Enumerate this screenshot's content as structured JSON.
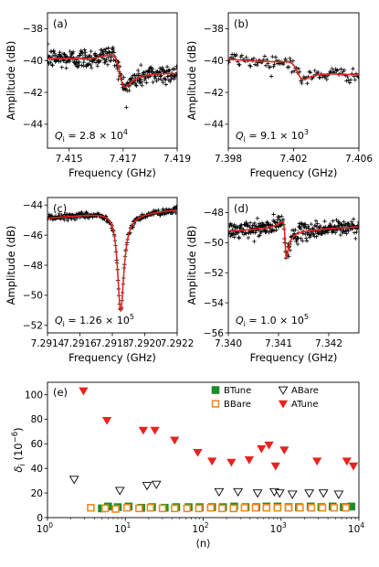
{
  "chart_data": [
    {
      "panel": "(a)",
      "type": "scatter",
      "xlabel": "Frequency (GHz)",
      "ylabel": "Amplitude (dB)",
      "xlim": [
        7.4142,
        7.419
      ],
      "ylim": [
        -45.5,
        -37
      ],
      "xticks": [
        7.415,
        7.417,
        7.419
      ],
      "xtick_labels": [
        "7.415",
        "7.417",
        "7.419"
      ],
      "yticks": [
        -44,
        -42,
        -40,
        -38
      ],
      "ytick_labels": [
        "−44",
        "−42",
        "−40",
        "−38"
      ],
      "annotation": "Q_i = 2.8 × 10^4",
      "annotation_parts": [
        "Q",
        "i",
        " = 2.8 × 10",
        "4"
      ],
      "model": {
        "kind": "fano",
        "f0": 7.4169,
        "width": 0.00024,
        "baseline_start": -40.0,
        "baseline_end": -40.6,
        "amp": 1.95,
        "phase": 0.35
      },
      "noise": 0.32,
      "n_points": 320,
      "line_color": "#e8231f",
      "marker": "+"
    },
    {
      "panel": "(b)",
      "type": "scatter",
      "xlabel": "Frequency (GHz)",
      "ylabel": "Amplitude (dB)",
      "xlim": [
        7.398,
        7.406
      ],
      "ylim": [
        -45.5,
        -37
      ],
      "xticks": [
        7.398,
        7.402,
        7.406
      ],
      "xtick_labels": [
        "7.398",
        "7.402",
        "7.406"
      ],
      "yticks": [
        -44,
        -42,
        -40,
        -38
      ],
      "ytick_labels": [
        "−44",
        "−42",
        "−40",
        "−38"
      ],
      "annotation": "Q_i = 9.1 × 10^3",
      "annotation_parts": [
        "Q",
        "i",
        " = 9.1 × 10",
        "3"
      ],
      "model": {
        "kind": "fano",
        "f0": 7.4023,
        "width": 0.00045,
        "baseline_start": -40.0,
        "baseline_end": -40.8,
        "amp": 1.0,
        "phase": 0.45
      },
      "noise": 0.22,
      "n_points": 120,
      "line_color": "#e8231f",
      "marker": "+"
    },
    {
      "panel": "(c)",
      "type": "scatter",
      "xlabel": "Frequency (GHz)",
      "ylabel": "Amplitude (dB)",
      "xlim": [
        7.2914,
        7.2922
      ],
      "ylim": [
        -52.5,
        -43.5
      ],
      "xticks": [
        7.2914,
        7.2916,
        7.2918,
        7.292,
        7.2922
      ],
      "xtick_labels": [
        "7.2914",
        "7.2916",
        "7.2918",
        "7.2920",
        "7.2922"
      ],
      "yticks": [
        -52,
        -50,
        -48,
        -46,
        -44
      ],
      "ytick_labels": [
        "−52",
        "−50",
        "−48",
        "−46",
        "−44"
      ],
      "annotation": "Q_i = 1.26 × 10^5",
      "annotation_parts": [
        "Q",
        "i",
        " = 1.26 × 10",
        "5"
      ],
      "model": {
        "kind": "fano",
        "f0": 7.29185,
        "width": 2.4e-05,
        "baseline_start": -44.9,
        "baseline_end": -44.25,
        "amp": 6.5,
        "phase": 1.45
      },
      "noise": 0.1,
      "n_points": 260,
      "line_color": "#e8231f",
      "marker": "+"
    },
    {
      "panel": "(d)",
      "type": "scatter",
      "xlabel": "Frequency (GHz)",
      "ylabel": "Amplitude (dB)",
      "xlim": [
        7.34,
        7.3426
      ],
      "ylim": [
        -56,
        -47
      ],
      "xticks": [
        7.34,
        7.341,
        7.342
      ],
      "xtick_labels": [
        "7.340",
        "7.341",
        "7.342"
      ],
      "yticks": [
        -56,
        -54,
        -52,
        -50,
        -48
      ],
      "ytick_labels": [
        "−56",
        "−54",
        "−52",
        "−50",
        "−48"
      ],
      "annotation": "Q_i = 1.0 × 10^5",
      "annotation_parts": [
        "Q",
        "i",
        " = 1.0 × 10",
        "5"
      ],
      "model": {
        "kind": "fano",
        "f0": 7.34114,
        "width": 3.5e-05,
        "baseline_start": -49.3,
        "baseline_end": -48.9,
        "amp": 2.4,
        "phase": 0.6
      },
      "noise": 0.28,
      "n_points": 330,
      "line_color": "#e8231f",
      "marker": "+"
    },
    {
      "panel": "(e)",
      "type": "scatter",
      "xscale": "log",
      "xlabel": "⟨n⟩",
      "ylabel": "δi (10⁻⁶)",
      "ylabel_parts": [
        "δ",
        "i",
        " (10",
        "−6",
        ")"
      ],
      "xlim": [
        1,
        10000
      ],
      "ylim": [
        0,
        110
      ],
      "xticks": [
        1,
        10,
        100,
        1000,
        10000
      ],
      "xtick_base": "10",
      "xtick_exps": [
        "0",
        "1",
        "2",
        "3",
        "4"
      ],
      "yticks": [
        0,
        20,
        40,
        60,
        80,
        100
      ],
      "ytick_labels": [
        "0",
        "20",
        "40",
        "60",
        "80",
        "100"
      ],
      "legend_position": "top-right",
      "series": [
        {
          "name": "BTune",
          "marker": "square-filled",
          "color": "#1f8c2a",
          "x": [
            5.0,
            6.0,
            8.0,
            11,
            16,
            22,
            32,
            45,
            65,
            90,
            130,
            180,
            250,
            350,
            480,
            650,
            900,
            1250,
            1700,
            2400,
            3300,
            4600,
            6400,
            8000
          ],
          "y": [
            7.5,
            9,
            8.5,
            9,
            8,
            8.5,
            8,
            8.5,
            8.5,
            8.5,
            8.5,
            8.5,
            9,
            8.5,
            8.5,
            9,
            9,
            8.5,
            8.5,
            9,
            8.5,
            9,
            8.5,
            9
          ]
        },
        {
          "name": "BBare",
          "marker": "square-open",
          "color": "#f2891e",
          "x": [
            3.6,
            5.5,
            7.5,
            10.5,
            15,
            21,
            30,
            43,
            62,
            88,
            125,
            175,
            245,
            340,
            470,
            650,
            900,
            1250,
            1750,
            2450,
            3400,
            4800,
            6800
          ],
          "y": [
            8,
            7.5,
            7,
            8,
            7.5,
            8,
            7.5,
            7.5,
            7.5,
            7.5,
            8,
            7.5,
            7.5,
            8,
            8,
            8,
            8,
            8,
            8,
            8,
            8,
            8,
            8
          ]
        },
        {
          "name": "ABare",
          "marker": "triangle-down-open",
          "color": "#000000",
          "x": [
            2.2,
            8.5,
            19,
            25,
            160,
            280,
            500,
            820,
            960,
            1400,
            2300,
            3500,
            5500
          ],
          "y": [
            31,
            22,
            26,
            27,
            21,
            21,
            20,
            21,
            20,
            19,
            20,
            20,
            19
          ]
        },
        {
          "name": "ATune",
          "marker": "triangle-down-filled",
          "color": "#e8231f",
          "x": [
            2.9,
            5.8,
            17,
            24,
            43,
            85,
            130,
            230,
            390,
            560,
            700,
            850,
            1100,
            2900,
            7000,
            8500
          ],
          "y": [
            103,
            79,
            71,
            71,
            63,
            53,
            46,
            45,
            47,
            56,
            59,
            42,
            55,
            46,
            46,
            42
          ]
        }
      ]
    }
  ]
}
